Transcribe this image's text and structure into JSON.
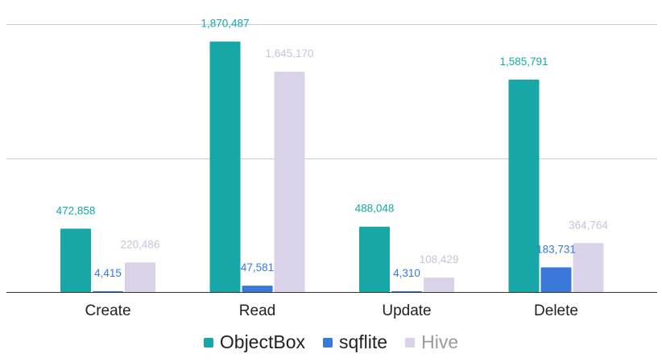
{
  "chart_data": {
    "type": "bar",
    "title": "",
    "xlabel": "",
    "ylabel": "",
    "ylim": [
      0,
      2000000
    ],
    "grid": true,
    "legend_position": "bottom",
    "categories": [
      "Create",
      "Read",
      "Update",
      "Delete"
    ],
    "series": [
      {
        "name": "ObjectBox",
        "color": "#16a7a6",
        "values": [
          472858,
          1870487,
          488048,
          1585791
        ],
        "labels": [
          "472,858",
          "1,870,487",
          "488,048",
          "1,585,791"
        ]
      },
      {
        "name": "sqflite",
        "color": "#3a78d9",
        "values": [
          4415,
          47581,
          4310,
          183731
        ],
        "labels": [
          "4,415",
          "47,581",
          "4,310",
          "183,731"
        ]
      },
      {
        "name": "Hive",
        "color": "#d9d2e9",
        "values": [
          220486,
          1645170,
          108429,
          364764
        ],
        "labels": [
          "220,486",
          "1,645,170",
          "108,429",
          "364,764"
        ]
      }
    ]
  }
}
